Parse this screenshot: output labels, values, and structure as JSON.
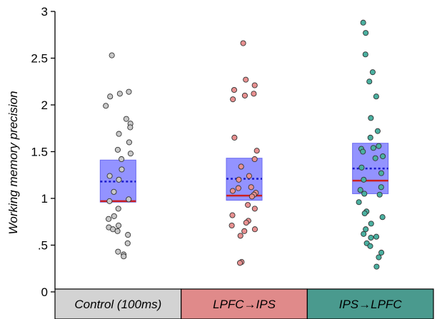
{
  "chart_data": {
    "type": "scatter",
    "title": "",
    "xlabel": "",
    "ylabel": "Working memory precision",
    "ylim": [
      0,
      3
    ],
    "yticks": [
      {
        "value": 0,
        "label": "0"
      },
      {
        "value": 0.5,
        "label": ".5"
      },
      {
        "value": 1,
        "label": "1"
      },
      {
        "value": 1.5,
        "label": "1.5"
      },
      {
        "value": 2,
        "label": "2"
      },
      {
        "value": 2.5,
        "label": "2.5"
      },
      {
        "value": 3,
        "label": "3"
      }
    ],
    "grid": false,
    "legend": "none",
    "categories": [
      "Control (100ms)",
      "LPFC→IPS",
      "IPS→LPFC"
    ],
    "category_colors": [
      "#d3d3d3",
      "#e08a8a",
      "#4a9a8e"
    ],
    "box_color": "#8080ff",
    "median_color": "#cc1f1f",
    "mean_color": "#1a1acc",
    "groups": [
      {
        "name": "Control (100ms)",
        "point_color": "#c8c8c8",
        "box": {
          "q1": 0.96,
          "q3": 1.41,
          "median": 0.97,
          "mean": 1.18
        },
        "points": [
          2.53,
          2.14,
          2.12,
          2.09,
          1.99,
          1.85,
          1.8,
          1.76,
          1.69,
          1.6,
          1.52,
          1.48,
          1.42,
          1.31,
          1.24,
          1.2,
          1.07,
          0.99,
          0.97,
          0.89,
          0.81,
          0.78,
          0.71,
          0.69,
          0.67,
          0.65,
          0.61,
          0.52,
          0.43,
          0.4,
          0.38
        ]
      },
      {
        "name": "LPFC→IPS",
        "point_color": "#e89090",
        "box": {
          "q1": 0.98,
          "q3": 1.43,
          "median": 1.03,
          "mean": 1.21
        },
        "points": [
          2.66,
          2.27,
          2.21,
          2.16,
          2.12,
          2.1,
          2.06,
          1.65,
          1.51,
          1.42,
          1.34,
          1.24,
          1.2,
          1.12,
          1.11,
          1.08,
          1.06,
          1.04,
          1.02,
          0.93,
          0.89,
          0.82,
          0.76,
          0.74,
          0.71,
          0.67,
          0.65,
          0.6,
          0.32,
          0.31
        ]
      },
      {
        "name": "IPS→LPFC",
        "point_color": "#4ab0a0",
        "box": {
          "q1": 1.05,
          "q3": 1.59,
          "median": 1.19,
          "mean": 1.32
        },
        "points": [
          2.88,
          2.77,
          2.54,
          2.35,
          2.25,
          2.09,
          1.86,
          1.72,
          1.65,
          1.56,
          1.54,
          1.53,
          1.5,
          1.45,
          1.43,
          1.33,
          1.27,
          1.2,
          1.12,
          1.09,
          1.05,
          1.04,
          0.96,
          0.86,
          0.84,
          0.8,
          0.73,
          0.67,
          0.62,
          0.59,
          0.58,
          0.52,
          0.49,
          0.42,
          0.37,
          0.27
        ]
      }
    ]
  }
}
